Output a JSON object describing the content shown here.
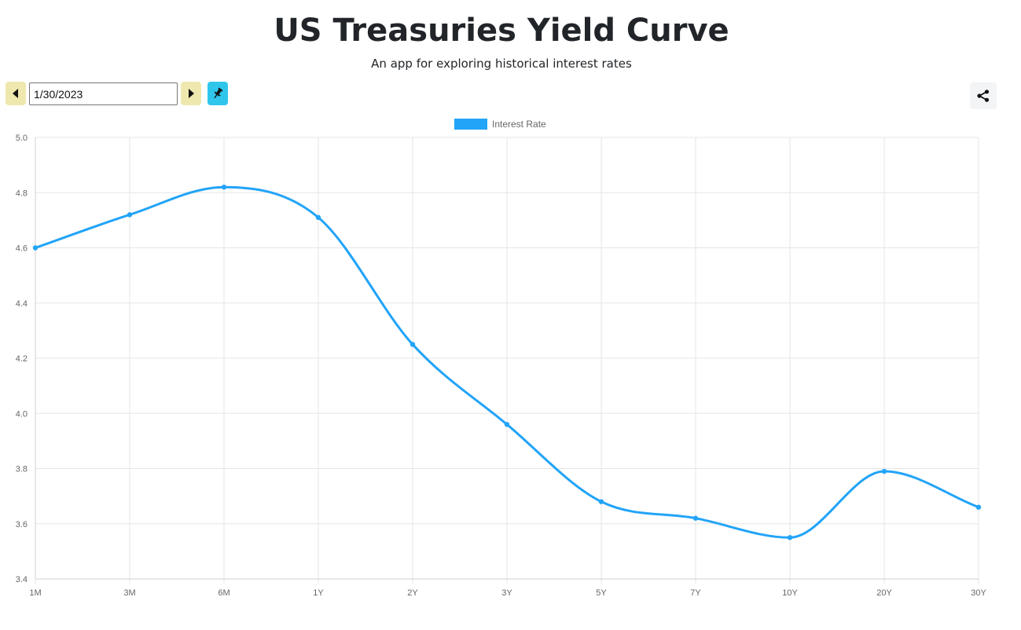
{
  "header": {
    "title": "US Treasuries Yield Curve",
    "subtitle": "An app for exploring historical interest rates"
  },
  "controls": {
    "date_value": "1/30/2023",
    "prev_icon": "caret-left-icon",
    "next_icon": "caret-right-icon",
    "pin_icon": "pin-icon",
    "share_icon": "share-icon"
  },
  "colors": {
    "nav_button": "#efe8ae",
    "pin_button": "#30c6ec",
    "series": "#22a4f8",
    "grid": "#e5e5e5"
  },
  "chart_data": {
    "type": "line",
    "title": "",
    "xlabel": "",
    "ylabel": "",
    "categories": [
      "1M",
      "3M",
      "6M",
      "1Y",
      "2Y",
      "3Y",
      "5Y",
      "7Y",
      "10Y",
      "20Y",
      "30Y"
    ],
    "series": [
      {
        "name": "Interest Rate",
        "values": [
          4.6,
          4.72,
          4.82,
          4.71,
          4.25,
          3.96,
          3.68,
          3.62,
          3.55,
          3.79,
          3.66
        ]
      }
    ],
    "ylim": [
      3.4,
      5.0
    ],
    "yticks": [
      "3.4",
      "3.6",
      "3.8",
      "4.0",
      "4.2",
      "4.4",
      "4.6",
      "4.8",
      "5.0"
    ],
    "grid": true,
    "legend": "top-center",
    "smooth": true
  }
}
